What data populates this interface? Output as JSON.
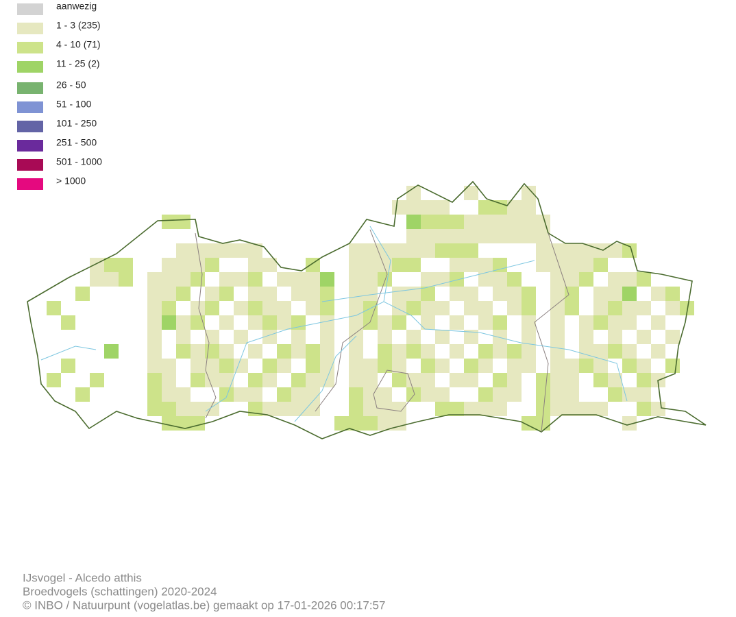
{
  "legend": {
    "items": [
      {
        "label": "aanwezig",
        "color": "#d3d3d3"
      },
      {
        "label": "1 - 3 (235)",
        "color": "#e6e8c0"
      },
      {
        "label": "4 - 10 (71)",
        "color": "#cde38a"
      },
      {
        "label": "11 - 25 (2)",
        "color": "#9fd466"
      },
      {
        "label": "26 - 50",
        "color": "#78b36f"
      },
      {
        "label": "51 - 100",
        "color": "#7f93d4"
      },
      {
        "label": "101 - 250",
        "color": "#6364a6"
      },
      {
        "label": "251 - 500",
        "color": "#6a2a9c"
      },
      {
        "label": "501 - 1000",
        "color": "#a80a55"
      },
      {
        "label": "> 1000",
        "color": "#e5097f"
      }
    ]
  },
  "footer": {
    "lines": [
      "IJsvogel - Alcedo atthis",
      "Broedvogels (schattingen) 2020-2024",
      "© INBO / Natuurpunt (vogelatlas.be) gemaakt op 17-01-2026 00:17:57"
    ]
  }
}
